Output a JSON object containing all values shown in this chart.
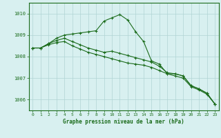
{
  "background_color": "#d8f0f0",
  "grid_color": "#b0d4d4",
  "line_color": "#1a6b1a",
  "title": "Graphe pression niveau de la mer (hPa)",
  "xlim": [
    -0.5,
    23.5
  ],
  "ylim": [
    1005.5,
    1010.5
  ],
  "yticks": [
    1006,
    1007,
    1008,
    1009,
    1010
  ],
  "xticks": [
    0,
    1,
    2,
    3,
    4,
    5,
    6,
    7,
    8,
    9,
    10,
    11,
    12,
    13,
    14,
    15,
    16,
    17,
    18,
    19,
    20,
    21,
    22,
    23
  ],
  "series1": [
    1008.4,
    1008.4,
    1008.6,
    1008.85,
    1009.0,
    1009.05,
    1009.1,
    1009.15,
    1009.2,
    1009.65,
    1009.8,
    1009.95,
    1009.7,
    1009.15,
    1008.7,
    1007.8,
    1007.65,
    1007.2,
    1007.2,
    1007.1,
    1006.65,
    1006.5,
    1006.3,
    1005.8
  ],
  "series2": [
    1008.4,
    1008.4,
    1008.6,
    1008.75,
    1008.85,
    1008.7,
    1008.55,
    1008.4,
    1008.3,
    1008.2,
    1008.25,
    1008.15,
    1008.05,
    1007.95,
    1007.85,
    1007.75,
    1007.55,
    1007.25,
    1007.2,
    1007.1,
    1006.65,
    1006.5,
    1006.3,
    1005.8
  ],
  "series3": [
    1008.4,
    1008.4,
    1008.55,
    1008.65,
    1008.7,
    1008.5,
    1008.35,
    1008.2,
    1008.1,
    1008.0,
    1007.9,
    1007.8,
    1007.7,
    1007.65,
    1007.6,
    1007.5,
    1007.35,
    1007.2,
    1007.1,
    1007.0,
    1006.6,
    1006.45,
    1006.25,
    1005.8
  ]
}
